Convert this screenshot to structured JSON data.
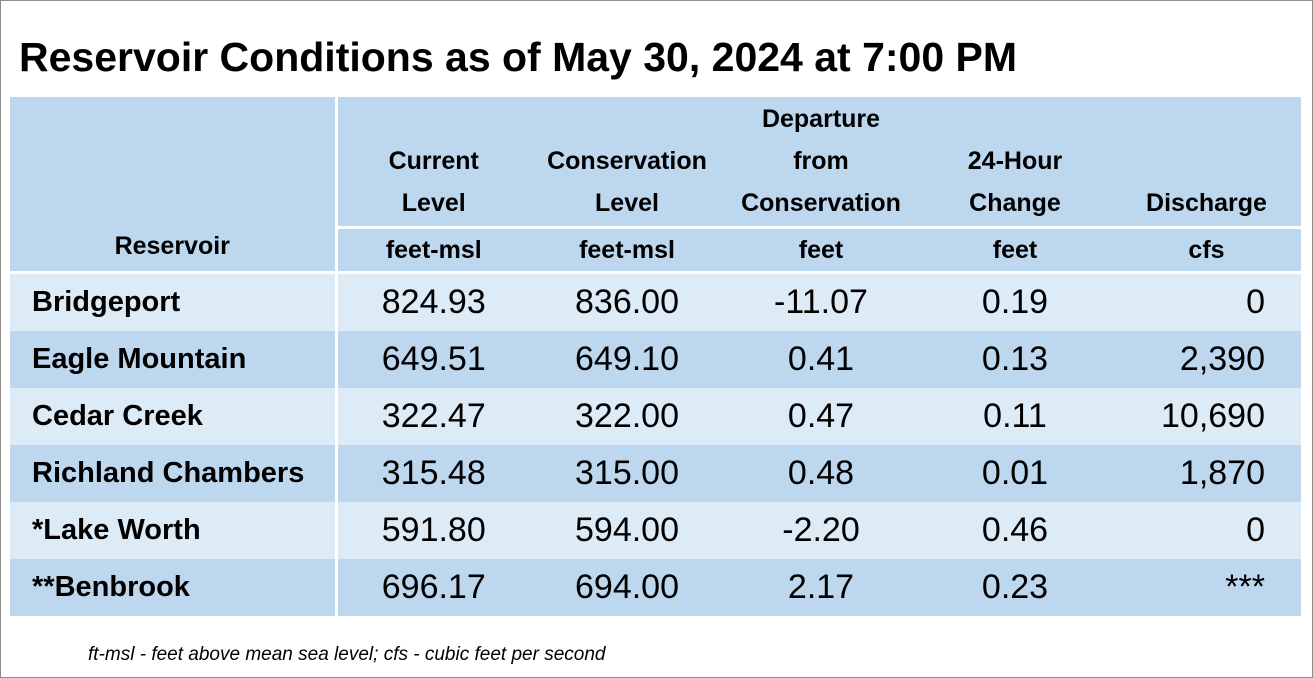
{
  "title": "Reservoir Conditions as of May 30, 2024 at 7:00 PM",
  "columns": [
    {
      "label_lines": [
        "Reservoir"
      ],
      "unit": ""
    },
    {
      "label_lines": [
        "Current",
        "Level"
      ],
      "unit": "feet-msl"
    },
    {
      "label_lines": [
        "Conservation",
        "Level"
      ],
      "unit": "feet-msl"
    },
    {
      "label_lines": [
        "Departure",
        "from",
        "Conservation"
      ],
      "unit": "feet"
    },
    {
      "label_lines": [
        "24-Hour",
        "Change"
      ],
      "unit": "feet"
    },
    {
      "label_lines": [
        "Discharge"
      ],
      "unit": "cfs"
    }
  ],
  "rows": [
    {
      "reservoir": "Bridgeport",
      "current": "824.93",
      "conservation": "836.00",
      "departure": "-11.07",
      "change": "0.19",
      "discharge": "0"
    },
    {
      "reservoir": "Eagle Mountain",
      "current": "649.51",
      "conservation": "649.10",
      "departure": "0.41",
      "change": "0.13",
      "discharge": "2,390"
    },
    {
      "reservoir": "Cedar Creek",
      "current": "322.47",
      "conservation": "322.00",
      "departure": "0.47",
      "change": "0.11",
      "discharge": "10,690"
    },
    {
      "reservoir": "Richland Chambers",
      "current": "315.48",
      "conservation": "315.00",
      "departure": "0.48",
      "change": "0.01",
      "discharge": "1,870"
    },
    {
      "reservoir": "*Lake Worth",
      "current": "591.80",
      "conservation": "594.00",
      "departure": "-2.20",
      "change": "0.46",
      "discharge": "0"
    },
    {
      "reservoir": "**Benbrook",
      "current": "696.17",
      "conservation": "694.00",
      "departure": "2.17",
      "change": "0.23",
      "discharge": "***"
    }
  ],
  "footnote": "ft-msl - feet above mean sea level; cfs - cubic feet per second",
  "colors": {
    "header_bg": "#bdd7ee",
    "row_light": "#ddebf7",
    "row_dark": "#bdd7ee",
    "separator": "#ffffff"
  }
}
